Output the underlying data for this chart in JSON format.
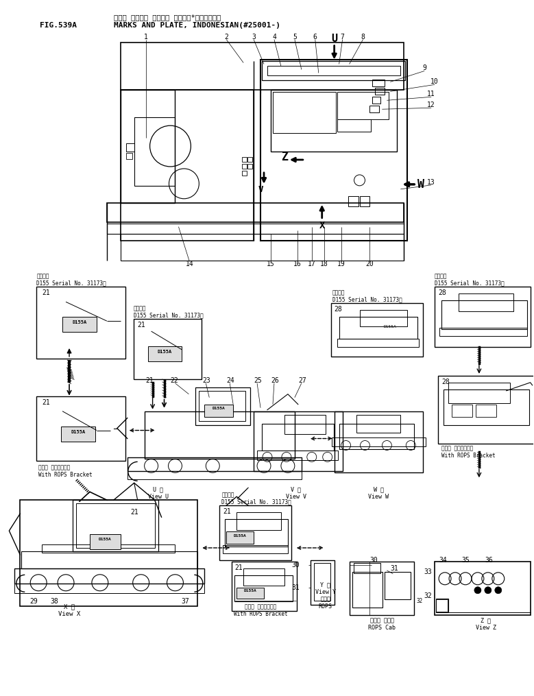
{
  "title_jp": "マーク オヨビブ プレート （インド*ネシアゴ゛）",
  "title_en": "MARKS AND PLATE, INDONESIAN(#25001-)",
  "fig_label": "FIG.539A",
  "bg_color": "#ffffff",
  "line_color": "#000000",
  "fig_width": 7.79,
  "fig_height": 10.15,
  "dpi": 100,
  "applic_text": "適用号機\nD155 Serial No. 31173～",
  "rops_bracket": "ロプス ブラケット付\nWith ROPS Bracket",
  "rops_cab": "ロプス キャブ\nROPS Cab"
}
